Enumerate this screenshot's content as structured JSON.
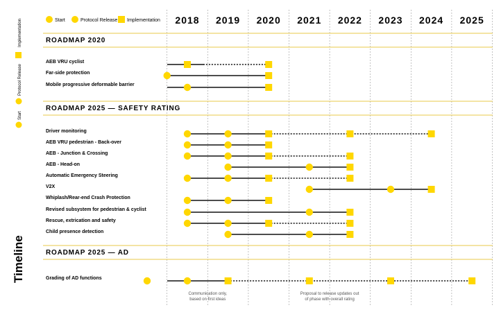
{
  "side_legend": {
    "implementation": "Implementation",
    "protocol_release": "Protocol Release",
    "start": "Start",
    "timeline": "Timeline"
  },
  "top_legend": {
    "start": "Start",
    "protocol_release": "Protocol Release",
    "implementation": "Implementation"
  },
  "colors": {
    "marker": "#FFD700",
    "line": "#111111",
    "divider": "#E8C84A",
    "grid": "#999999"
  },
  "chart_data": {
    "type": "timeline",
    "years": [
      "2018",
      "2019",
      "2020",
      "2021",
      "2022",
      "2023",
      "2024",
      "2025"
    ],
    "sections": [
      {
        "title": "ROADMAP 2020",
        "rows": [
          {
            "label": "AEB VRU cyclist",
            "markers": [
              {
                "year": 2018,
                "kind": "implementation"
              },
              {
                "year": 2020,
                "kind": "implementation"
              }
            ],
            "segments": [
              {
                "from": 2017.0,
                "to": 2018.4,
                "style": "solid"
              },
              {
                "from": 2018.4,
                "to": 2020.0,
                "style": "dotted"
              }
            ]
          },
          {
            "label": "Far-side protection",
            "markers": [
              {
                "year": 2017.5,
                "kind": "start"
              },
              {
                "year": 2020,
                "kind": "implementation"
              }
            ],
            "segments": [
              {
                "from": 2017.5,
                "to": 2020.0,
                "style": "solid"
              }
            ]
          },
          {
            "label": "Mobile progressive deformable barrier",
            "markers": [
              {
                "year": 2018,
                "kind": "start"
              },
              {
                "year": 2020,
                "kind": "implementation"
              }
            ],
            "segments": [
              {
                "from": 2017.0,
                "to": 2020.0,
                "style": "solid"
              }
            ]
          }
        ]
      },
      {
        "title": "ROADMAP 2025 — SAFETY RATING",
        "rows": [
          {
            "label": "Driver monitoring",
            "markers": [
              {
                "year": 2018,
                "kind": "start"
              },
              {
                "year": 2019,
                "kind": "start"
              },
              {
                "year": 2020,
                "kind": "implementation"
              },
              {
                "year": 2022,
                "kind": "implementation"
              },
              {
                "year": 2024,
                "kind": "implementation"
              }
            ],
            "segments": [
              {
                "from": 2018,
                "to": 2020,
                "style": "solid"
              },
              {
                "from": 2020,
                "to": 2024,
                "style": "dotted"
              }
            ]
          },
          {
            "label": "AEB VRU pedestrian - Back-over",
            "markers": [
              {
                "year": 2018,
                "kind": "start"
              },
              {
                "year": 2019,
                "kind": "start"
              },
              {
                "year": 2020,
                "kind": "implementation"
              }
            ],
            "segments": [
              {
                "from": 2018,
                "to": 2020,
                "style": "solid"
              }
            ]
          },
          {
            "label": "AEB - Junction & Crossing",
            "markers": [
              {
                "year": 2018,
                "kind": "start"
              },
              {
                "year": 2019,
                "kind": "start"
              },
              {
                "year": 2020,
                "kind": "implementation"
              },
              {
                "year": 2022,
                "kind": "implementation"
              }
            ],
            "segments": [
              {
                "from": 2018,
                "to": 2020,
                "style": "solid"
              },
              {
                "from": 2020,
                "to": 2022,
                "style": "dotted"
              }
            ]
          },
          {
            "label": "AEB - Head-on",
            "markers": [
              {
                "year": 2019,
                "kind": "start"
              },
              {
                "year": 2021,
                "kind": "start"
              },
              {
                "year": 2022,
                "kind": "implementation"
              }
            ],
            "segments": [
              {
                "from": 2019,
                "to": 2022,
                "style": "solid"
              }
            ]
          },
          {
            "label": "Automatic Emergency Steering",
            "markers": [
              {
                "year": 2018,
                "kind": "start"
              },
              {
                "year": 2019,
                "kind": "start"
              },
              {
                "year": 2020,
                "kind": "implementation"
              },
              {
                "year": 2022,
                "kind": "implementation"
              }
            ],
            "segments": [
              {
                "from": 2018,
                "to": 2020,
                "style": "solid"
              },
              {
                "from": 2020,
                "to": 2022,
                "style": "dotted"
              }
            ]
          },
          {
            "label": "V2X",
            "markers": [
              {
                "year": 2021,
                "kind": "start"
              },
              {
                "year": 2023,
                "kind": "start"
              },
              {
                "year": 2024,
                "kind": "implementation"
              }
            ],
            "segments": [
              {
                "from": 2021,
                "to": 2024,
                "style": "solid"
              }
            ]
          },
          {
            "label": "Whiplash/Rear-end Crash Protection",
            "markers": [
              {
                "year": 2018,
                "kind": "start"
              },
              {
                "year": 2019,
                "kind": "start"
              },
              {
                "year": 2020,
                "kind": "implementation"
              }
            ],
            "segments": [
              {
                "from": 2018,
                "to": 2020,
                "style": "solid"
              }
            ]
          },
          {
            "label": "Revised subsystem for pedestrian & cyclist",
            "markers": [
              {
                "year": 2018,
                "kind": "start"
              },
              {
                "year": 2021,
                "kind": "start"
              },
              {
                "year": 2022,
                "kind": "implementation"
              }
            ],
            "segments": [
              {
                "from": 2018,
                "to": 2022,
                "style": "solid"
              }
            ]
          },
          {
            "label": "Rescue, extrication and safety",
            "markers": [
              {
                "year": 2018,
                "kind": "start"
              },
              {
                "year": 2019,
                "kind": "start"
              },
              {
                "year": 2020,
                "kind": "implementation"
              },
              {
                "year": 2022,
                "kind": "implementation"
              }
            ],
            "segments": [
              {
                "from": 2018,
                "to": 2020,
                "style": "solid"
              },
              {
                "from": 2020,
                "to": 2022,
                "style": "dotted"
              }
            ]
          },
          {
            "label": "Child presence detection",
            "markers": [
              {
                "year": 2019,
                "kind": "start"
              },
              {
                "year": 2021,
                "kind": "start"
              },
              {
                "year": 2022,
                "kind": "implementation"
              }
            ],
            "segments": [
              {
                "from": 2019,
                "to": 2022,
                "style": "solid"
              }
            ]
          }
        ]
      },
      {
        "title": "ROADMAP 2025 — AD",
        "rows": [
          {
            "label": "Grading of AD functions",
            "markers": [
              {
                "year": 2017.0,
                "kind": "start"
              },
              {
                "year": 2018,
                "kind": "start"
              },
              {
                "year": 2019,
                "kind": "implementation"
              },
              {
                "year": 2021,
                "kind": "implementation"
              },
              {
                "year": 2023,
                "kind": "implementation"
              },
              {
                "year": 2025,
                "kind": "implementation"
              }
            ],
            "segments": [
              {
                "from": 2017.0,
                "to": 2019,
                "style": "solid"
              },
              {
                "from": 2019,
                "to": 2025,
                "style": "dotted"
              }
            ]
          }
        ]
      }
    ],
    "notes": [
      {
        "year": 2018.5,
        "lines": [
          "Communication only,",
          "based on first ideas"
        ]
      },
      {
        "year": 2021.5,
        "lines": [
          "Proposal to release updates out",
          "of phase with overall rating"
        ]
      }
    ]
  }
}
